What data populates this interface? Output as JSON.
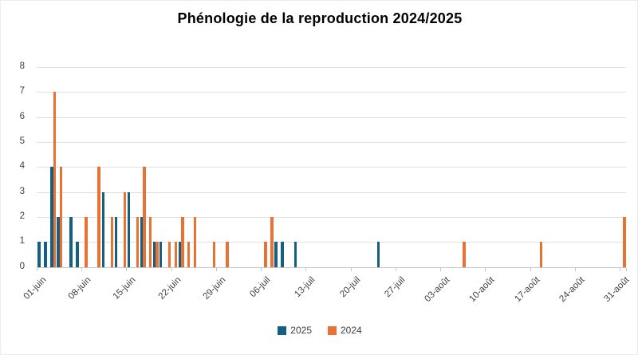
{
  "chart_data": {
    "type": "bar",
    "title": "Phénologie de la reproduction 2024/2025",
    "xlabel": "",
    "ylabel": "",
    "ylim": [
      0,
      8
    ],
    "y_ticks": [
      0,
      1,
      2,
      3,
      4,
      5,
      6,
      7,
      8
    ],
    "grid": "horizontal",
    "legend_position": "bottom",
    "x_days_total": 92,
    "x_tick_every_days": 7,
    "x_tick_labels": [
      "01-juin",
      "08-juin",
      "15-juin",
      "22-juin",
      "29-juin",
      "06-juil",
      "13-juil",
      "20-juil",
      "27-juil",
      "03-août",
      "10-août",
      "17-août",
      "24-août",
      "31-août"
    ],
    "series": [
      {
        "name": "2025",
        "color": "#156082"
      },
      {
        "name": "2024",
        "color": "#E97132"
      }
    ],
    "points": [
      {
        "day": 1,
        "date": "01-juin",
        "v2025": 1,
        "v2024": 0
      },
      {
        "day": 2,
        "date": "02-juin",
        "v2025": 1,
        "v2024": 0
      },
      {
        "day": 3,
        "date": "03-juin",
        "v2025": 4,
        "v2024": 7
      },
      {
        "day": 4,
        "date": "04-juin",
        "v2025": 2,
        "v2024": 4
      },
      {
        "day": 6,
        "date": "06-juin",
        "v2025": 2,
        "v2024": 0
      },
      {
        "day": 7,
        "date": "07-juin",
        "v2025": 1,
        "v2024": 0
      },
      {
        "day": 8,
        "date": "08-juin",
        "v2025": 0,
        "v2024": 2
      },
      {
        "day": 10,
        "date": "10-juin",
        "v2025": 0,
        "v2024": 4
      },
      {
        "day": 11,
        "date": "11-juin",
        "v2025": 3,
        "v2024": 0
      },
      {
        "day": 12,
        "date": "12-juin",
        "v2025": 0,
        "v2024": 2
      },
      {
        "day": 13,
        "date": "13-juin",
        "v2025": 2,
        "v2024": 0
      },
      {
        "day": 14,
        "date": "14-juin",
        "v2025": 0,
        "v2024": 3
      },
      {
        "day": 15,
        "date": "15-juin",
        "v2025": 3,
        "v2024": 0
      },
      {
        "day": 16,
        "date": "16-juin",
        "v2025": 0,
        "v2024": 2
      },
      {
        "day": 17,
        "date": "17-juin",
        "v2025": 2,
        "v2024": 4
      },
      {
        "day": 18,
        "date": "18-juin",
        "v2025": 0,
        "v2024": 2
      },
      {
        "day": 19,
        "date": "19-juin",
        "v2025": 1,
        "v2024": 1
      },
      {
        "day": 20,
        "date": "20-juin",
        "v2025": 1,
        "v2024": 0
      },
      {
        "day": 21,
        "date": "21-juin",
        "v2025": 0,
        "v2024": 1
      },
      {
        "day": 22,
        "date": "22-juin",
        "v2025": 0,
        "v2024": 1
      },
      {
        "day": 23,
        "date": "23-juin",
        "v2025": 1,
        "v2024": 2
      },
      {
        "day": 24,
        "date": "24-juin",
        "v2025": 0,
        "v2024": 1
      },
      {
        "day": 25,
        "date": "25-juin",
        "v2025": 0,
        "v2024": 2
      },
      {
        "day": 28,
        "date": "28-juin",
        "v2025": 0,
        "v2024": 1
      },
      {
        "day": 30,
        "date": "30-juin",
        "v2025": 0,
        "v2024": 1
      },
      {
        "day": 36,
        "date": "06-juil",
        "v2025": 0,
        "v2024": 1
      },
      {
        "day": 37,
        "date": "07-juil",
        "v2025": 0,
        "v2024": 2
      },
      {
        "day": 38,
        "date": "08-juil",
        "v2025": 1,
        "v2024": 0
      },
      {
        "day": 39,
        "date": "09-juil",
        "v2025": 1,
        "v2024": 0
      },
      {
        "day": 41,
        "date": "11-juil",
        "v2025": 1,
        "v2024": 0
      },
      {
        "day": 54,
        "date": "24-juil",
        "v2025": 1,
        "v2024": 0
      },
      {
        "day": 67,
        "date": "06-août",
        "v2025": 0,
        "v2024": 1
      },
      {
        "day": 79,
        "date": "18-août",
        "v2025": 0,
        "v2024": 1
      },
      {
        "day": 92,
        "date": "31-août",
        "v2025": 0,
        "v2024": 2
      }
    ]
  }
}
